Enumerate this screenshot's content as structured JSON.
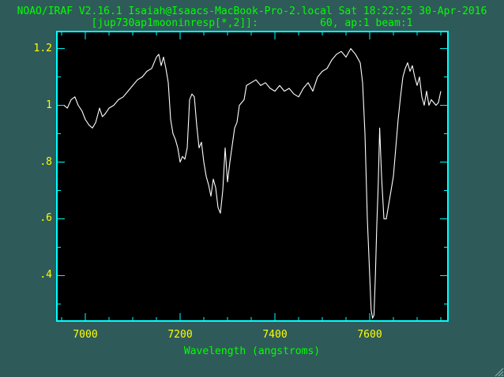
{
  "header": {
    "title": "NOAO/IRAF V2.16.1 Isaiah@Isaacs-MacBook-Pro-2.local Sat 18:22:25 30-Apr-2016",
    "subtitle": "[jup730ap1mooninresp[*,2]]:          60, ap:1 beam:1"
  },
  "colors": {
    "background": "#2f5a5a",
    "plot_bg": "#000000",
    "axes": "#00ffff",
    "data": "#ffffff",
    "title_text": "#00ff00",
    "tick_labels": "#ffff00",
    "xlabel_text": "#00ff00"
  },
  "chart_data": {
    "type": "line",
    "title": "NOAO/IRAF V2.16.1 Isaiah@Isaacs-MacBook-Pro-2.local Sat 18:22:25 30-Apr-2016",
    "subtitle": "[jup730ap1mooninresp[*,2]]:          60, ap:1 beam:1",
    "xlabel": "Wavelength (angstroms)",
    "ylabel": "",
    "xlim": [
      6940,
      7765
    ],
    "ylim": [
      0.24,
      1.26
    ],
    "xticks": [
      7000,
      7200,
      7400,
      7600
    ],
    "xtick_labels": [
      "7000",
      "7200",
      "7400",
      "7600"
    ],
    "yticks": [
      0.4,
      0.6,
      0.8,
      1.0,
      1.2
    ],
    "ytick_labels": [
      ".4",
      ".6",
      ".8",
      "1",
      "1.2"
    ],
    "grid": false,
    "series": [
      {
        "x": [
          6955,
          6962,
          6970,
          6978,
          6985,
          6993,
          7000,
          7008,
          7015,
          7022,
          7030,
          7036,
          7042,
          7050,
          7060,
          7070,
          7080,
          7090,
          7100,
          7110,
          7120,
          7130,
          7140,
          7150,
          7155,
          7160,
          7165,
          7170,
          7175,
          7180,
          7185,
          7190,
          7195,
          7200,
          7205,
          7210,
          7215,
          7220,
          7225,
          7230,
          7235,
          7240,
          7245,
          7250,
          7255,
          7260,
          7265,
          7270,
          7275,
          7280,
          7285,
          7290,
          7295,
          7300,
          7305,
          7310,
          7315,
          7320,
          7325,
          7330,
          7335,
          7340,
          7350,
          7360,
          7370,
          7380,
          7390,
          7400,
          7410,
          7420,
          7430,
          7440,
          7450,
          7460,
          7470,
          7480,
          7490,
          7500,
          7510,
          7520,
          7530,
          7540,
          7550,
          7560,
          7570,
          7580,
          7585,
          7590,
          7595,
          7600,
          7603,
          7606,
          7609,
          7612,
          7615,
          7618,
          7621,
          7625,
          7630,
          7635,
          7640,
          7645,
          7650,
          7655,
          7660,
          7665,
          7670,
          7675,
          7680,
          7685,
          7690,
          7695,
          7700,
          7705,
          7710,
          7715,
          7720,
          7725,
          7730,
          7735,
          7740,
          7745,
          7750
        ],
        "y": [
          1.0,
          0.99,
          1.02,
          1.03,
          1.0,
          0.98,
          0.95,
          0.93,
          0.92,
          0.94,
          0.99,
          0.96,
          0.97,
          0.99,
          1.0,
          1.02,
          1.03,
          1.05,
          1.07,
          1.09,
          1.1,
          1.12,
          1.13,
          1.17,
          1.18,
          1.14,
          1.17,
          1.13,
          1.08,
          0.95,
          0.9,
          0.88,
          0.85,
          0.8,
          0.82,
          0.81,
          0.85,
          1.02,
          1.04,
          1.03,
          0.93,
          0.85,
          0.87,
          0.8,
          0.75,
          0.72,
          0.68,
          0.74,
          0.71,
          0.64,
          0.62,
          0.7,
          0.85,
          0.73,
          0.8,
          0.86,
          0.92,
          0.94,
          1.0,
          1.01,
          1.02,
          1.07,
          1.08,
          1.09,
          1.07,
          1.08,
          1.06,
          1.05,
          1.07,
          1.05,
          1.06,
          1.04,
          1.03,
          1.06,
          1.08,
          1.05,
          1.1,
          1.12,
          1.13,
          1.16,
          1.18,
          1.19,
          1.17,
          1.2,
          1.18,
          1.15,
          1.08,
          0.9,
          0.6,
          0.4,
          0.28,
          0.25,
          0.26,
          0.4,
          0.58,
          0.72,
          0.92,
          0.75,
          0.6,
          0.6,
          0.65,
          0.7,
          0.75,
          0.85,
          0.95,
          1.03,
          1.1,
          1.13,
          1.15,
          1.12,
          1.14,
          1.1,
          1.07,
          1.1,
          1.03,
          1.0,
          1.05,
          1.0,
          1.02,
          1.01,
          1.0,
          1.01,
          1.05
        ]
      }
    ]
  }
}
